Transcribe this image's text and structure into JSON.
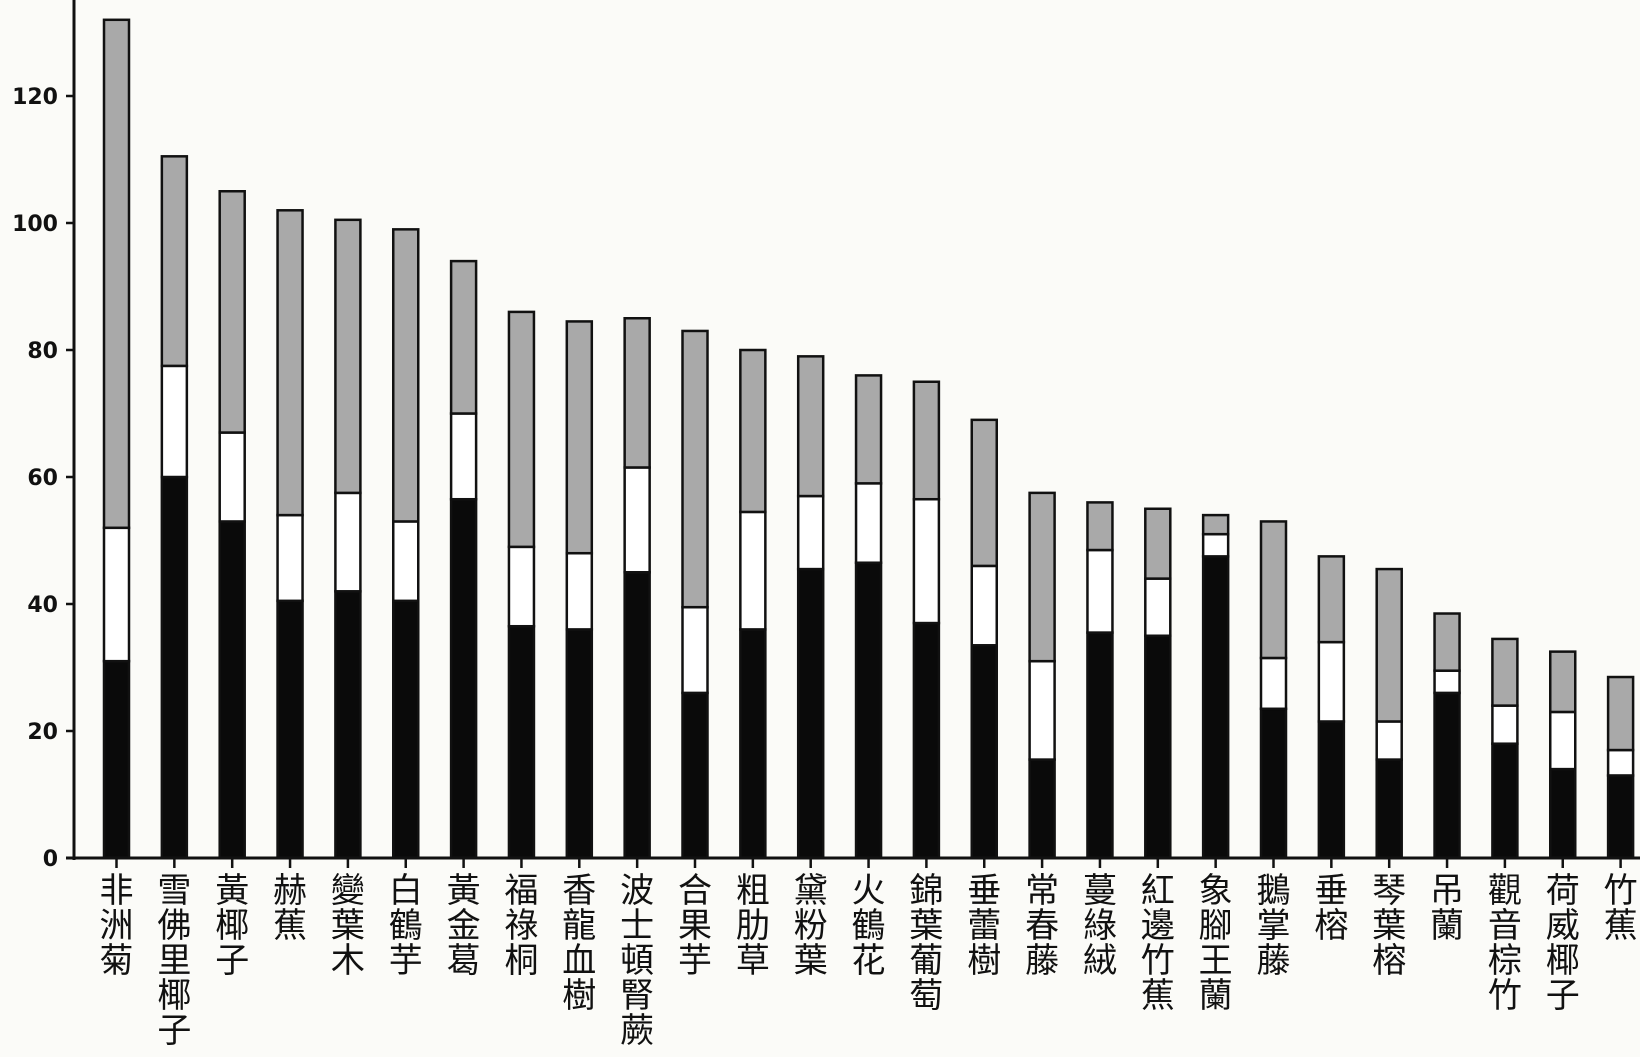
{
  "chart_data": {
    "type": "bar",
    "stacked": true,
    "title": "",
    "xlabel": "",
    "ylabel": "",
    "ylim": [
      0,
      132
    ],
    "yticks": [
      0,
      20,
      40,
      60,
      80,
      100,
      120
    ],
    "grid": false,
    "legend": "none",
    "colors": {
      "bottom": "#0a0a0a",
      "middle": "#ffffff",
      "top": "#a9a9a9",
      "outline": "#111111"
    },
    "categories": [
      "非洲菊",
      "雪佛里椰子",
      "黃椰子",
      "赫蕉",
      "變葉木",
      "白鶴芋",
      "黃金葛",
      "福祿桐",
      "香龍血樹",
      "波士頓腎蕨",
      "合果芋",
      "粗肋草",
      "黛粉葉",
      "火鶴花",
      "錦葉葡萄",
      "垂蕾樹",
      "常春藤",
      "蔓綠絨",
      "紅邊竹蕉",
      "象腳王蘭",
      "鵝掌藤",
      "垂榕",
      "琴葉榕",
      "吊蘭",
      "觀音棕竹",
      "荷威椰子",
      "竹蕉"
    ],
    "series": [
      {
        "values": [
          31,
          60,
          53,
          40.5,
          42,
          40.5,
          56.5,
          36.5,
          36,
          45,
          26,
          36,
          45.5,
          46.5,
          37,
          33.5,
          15.5,
          35.5,
          35,
          47.5,
          23.5,
          21.5,
          15.5,
          26,
          18,
          14,
          13
        ]
      },
      {
        "values": [
          21,
          17.5,
          14,
          13.5,
          15.5,
          12.5,
          13.5,
          12.5,
          12,
          16.5,
          13.5,
          18.5,
          11.5,
          12.5,
          19.5,
          12.5,
          15.5,
          13,
          9,
          3.5,
          8,
          12.5,
          6,
          3.5,
          6,
          9,
          4
        ]
      },
      {
        "values": [
          80,
          33,
          38,
          48,
          43,
          46,
          24,
          37,
          36.5,
          23.5,
          43.5,
          25.5,
          22,
          17,
          18.5,
          23,
          26.5,
          7.5,
          11,
          3,
          21.5,
          13.5,
          24,
          9,
          10.5,
          9.5,
          11.5
        ]
      }
    ]
  }
}
